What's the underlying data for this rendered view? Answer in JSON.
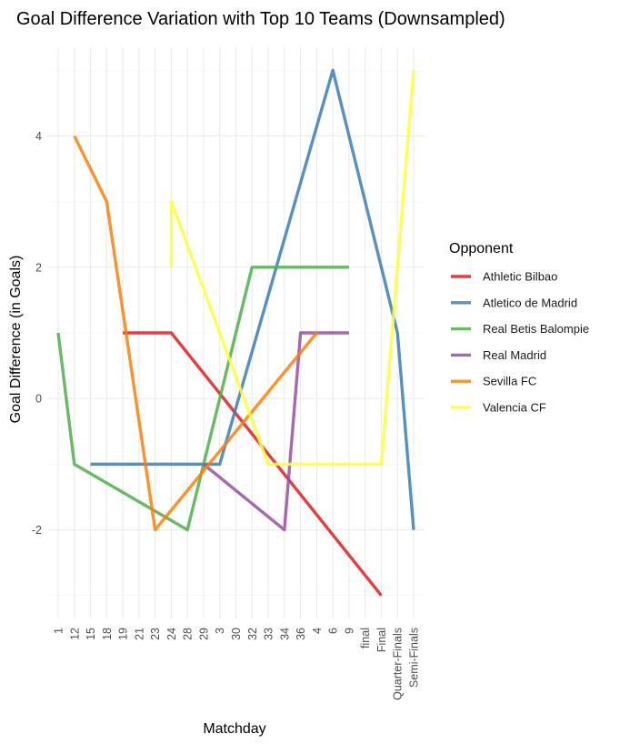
{
  "chart_data": {
    "type": "line",
    "title": "Goal Difference Variation with Top 10 Teams (Downsampled)",
    "xlabel": "Matchday",
    "ylabel": "Goal Difference (in Goals)",
    "categories": [
      "1",
      "12",
      "15",
      "18",
      "19",
      "21",
      "23",
      "24",
      "28",
      "29",
      "3",
      "30",
      "32",
      "33",
      "34",
      "36",
      "4",
      "6",
      "9",
      "final",
      "Final",
      "Quarter-Finals",
      "Semi-Finals"
    ],
    "ylim": [
      -3.35,
      5.35
    ],
    "yticks": [
      -2,
      0,
      2,
      4
    ],
    "grid": true,
    "legend": {
      "title": "Opponent",
      "position": "right"
    },
    "series": [
      {
        "name": "Athletic Bilbao",
        "color": "#E41A1C",
        "points": [
          [
            "19",
            1
          ],
          [
            "24",
            1
          ],
          [
            "Final",
            -3
          ]
        ]
      },
      {
        "name": "Atletico de Madrid",
        "color": "#377EB8",
        "points": [
          [
            "15",
            -1
          ],
          [
            "3",
            -1
          ],
          [
            "6",
            5
          ],
          [
            "Quarter-Finals",
            1
          ],
          [
            "Semi-Finals",
            -2
          ]
        ]
      },
      {
        "name": "Real Betis Balompie",
        "color": "#4DAF4A",
        "points": [
          [
            "1",
            1
          ],
          [
            "12",
            -1
          ],
          [
            "28",
            -2
          ],
          [
            "32",
            2
          ],
          [
            "9",
            2
          ]
        ]
      },
      {
        "name": "Real Madrid",
        "color": "#984EA3",
        "points": [
          [
            "29",
            -1
          ],
          [
            "34",
            -2
          ],
          [
            "36",
            1
          ],
          [
            "9",
            1
          ]
        ]
      },
      {
        "name": "Sevilla FC",
        "color": "#FF7F00",
        "points": [
          [
            "12",
            4
          ],
          [
            "18",
            3
          ],
          [
            "23",
            -2
          ],
          [
            "4",
            1
          ]
        ]
      },
      {
        "name": "Valencia CF",
        "color": "#FFFF33",
        "points": [
          [
            "24",
            2
          ],
          [
            "24",
            3
          ],
          [
            "33",
            -1
          ],
          [
            "Final",
            -1
          ],
          [
            "Semi-Finals",
            5
          ]
        ]
      }
    ]
  }
}
